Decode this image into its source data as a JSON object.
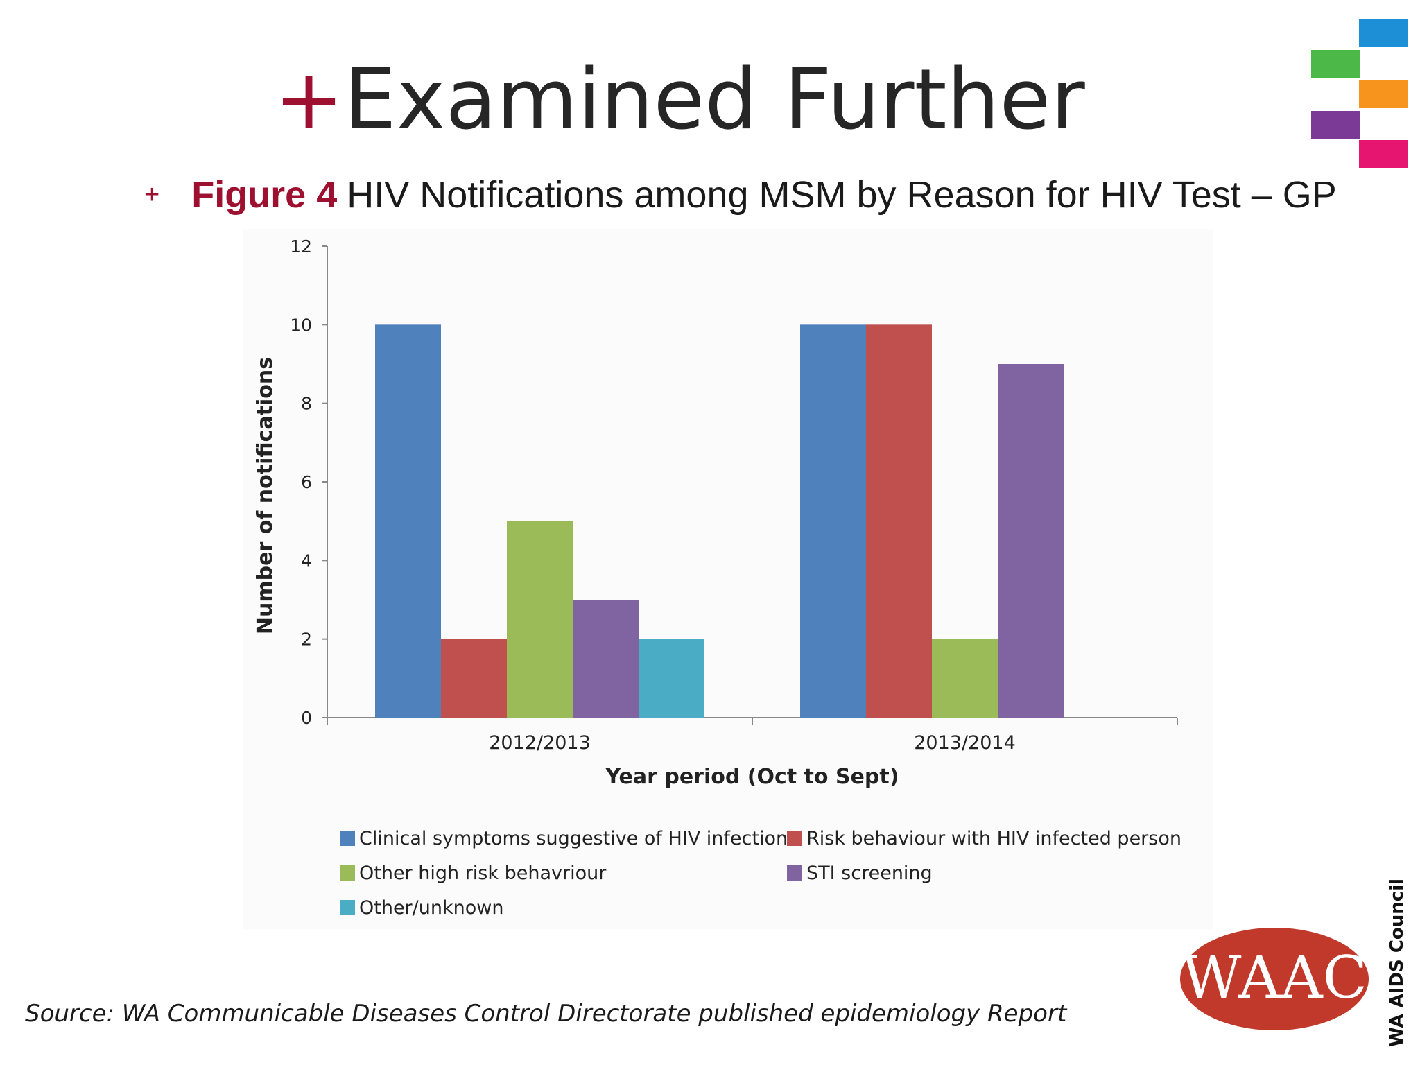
{
  "slide": {
    "title_plus": "+",
    "title": "Examined Further",
    "bullet": "+",
    "figure_label": "Figure 4",
    "figure_caption": "HIV Notifications among MSM by Reason for HIV Test – GP",
    "source": "Source: WA Communicable Diseases Control Directorate published epidemiology Report",
    "logo_text": "WAAC",
    "org_vertical": "WA AIDS Council",
    "brand_colors": [
      "#1d8fd6",
      "#4cb848",
      "#f7941d",
      "#7b3a96",
      "#e6156f"
    ],
    "logo_color": "#c0392b"
  },
  "chart_data": {
    "type": "bar",
    "title": "",
    "xlabel": "Year period (Oct to Sept)",
    "ylabel": "Number of notifications",
    "ylim": [
      0,
      12
    ],
    "yticks": [
      "0",
      "2",
      "4",
      "6",
      "8",
      "10",
      "12"
    ],
    "grid": false,
    "legend_position": "bottom",
    "categories": [
      "2012/2013",
      "2013/2014"
    ],
    "series": [
      {
        "name": "Clinical symptoms suggestive of HIV infection",
        "color": "#4f81bd",
        "values": [
          10,
          10
        ]
      },
      {
        "name": "Risk behaviour with HIV infected person",
        "color": "#c0504d",
        "values": [
          2,
          10
        ]
      },
      {
        "name": "Other high risk behavriour",
        "color": "#9bbb59",
        "values": [
          5,
          2
        ]
      },
      {
        "name": "STI screening",
        "color": "#8064a2",
        "values": [
          3,
          9
        ]
      },
      {
        "name": "Other/unknown",
        "color": "#4bacc6",
        "values": [
          2,
          null
        ]
      }
    ]
  }
}
